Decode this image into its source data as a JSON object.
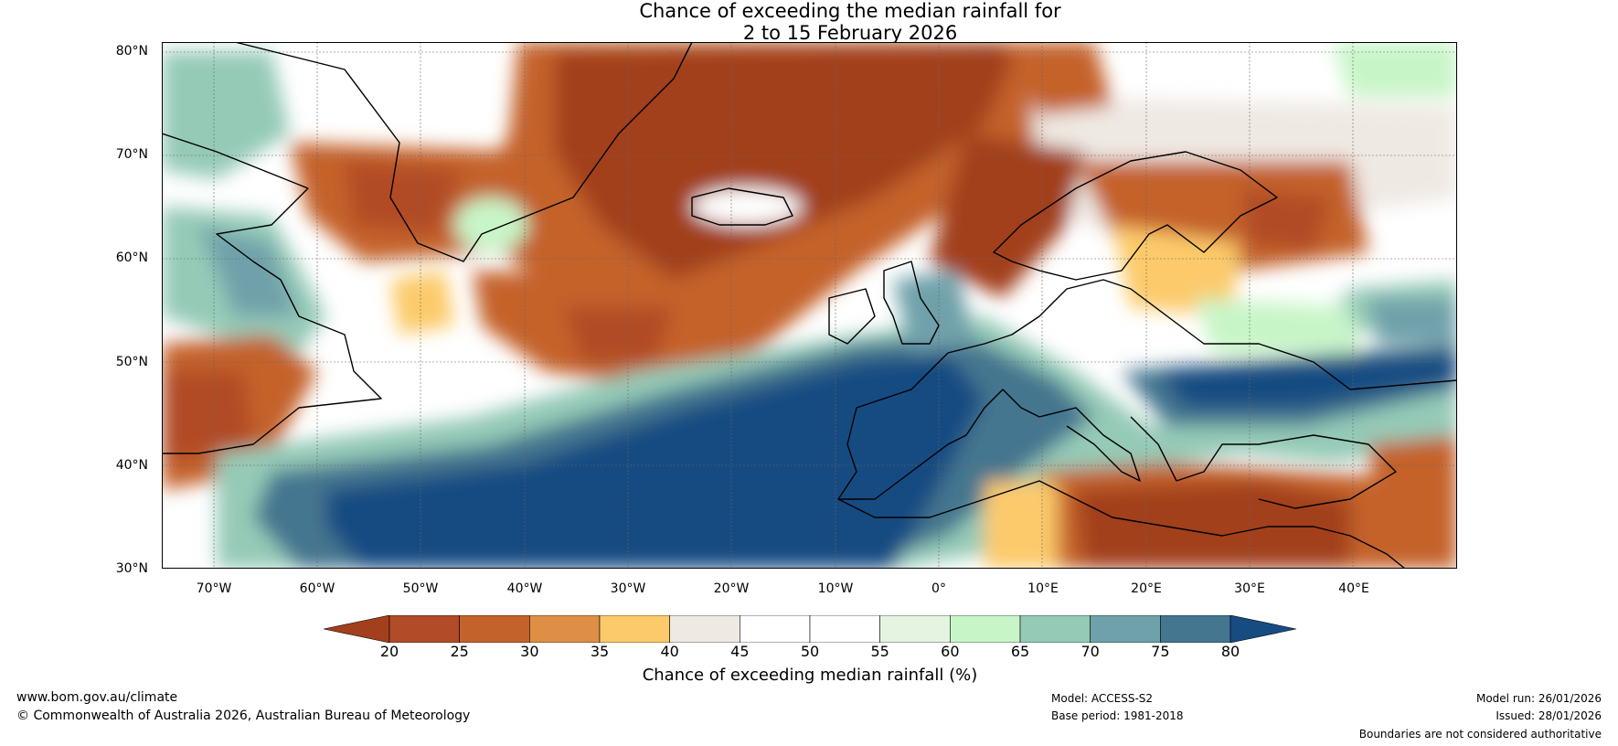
{
  "title": {
    "line1": "Chance of exceeding the median rainfall for",
    "line2": "2 to 15 February 2026"
  },
  "map": {
    "lat_labels": [
      "80°N",
      "70°N",
      "60°N",
      "50°N",
      "40°N",
      "30°N"
    ],
    "lon_labels": [
      "70°W",
      "60°W",
      "50°W",
      "40°W",
      "30°W",
      "20°W",
      "10°W",
      "0°",
      "10°E",
      "20°E",
      "30°E",
      "40°E"
    ],
    "extent": {
      "lon_min": -75,
      "lon_max": 50,
      "lat_min": 30,
      "lat_max": 81
    }
  },
  "legend": {
    "ticks": [
      "20",
      "25",
      "30",
      "35",
      "40",
      "45",
      "50",
      "55",
      "60",
      "65",
      "70",
      "75",
      "80"
    ],
    "colors": [
      "#a2401d",
      "#b14b28",
      "#c4622c",
      "#de8f45",
      "#fcca6a",
      "#efe9e3",
      "#ffffff",
      "#ffffff",
      "#e4f4e0",
      "#c8f5c8",
      "#95cab7",
      "#6fa1aa",
      "#44768f",
      "#164c82"
    ],
    "label": "Chance of exceeding median rainfall (%)"
  },
  "footer": {
    "website": "www.bom.gov.au/climate",
    "copyright": "© Commonwealth of Australia 2026, Australian Bureau of Meteorology",
    "model": "Model: ACCESS-S2",
    "base_period": "Base period: 1981-2018",
    "model_run": "Model run: 26/01/2026",
    "issued": "Issued: 28/01/2026",
    "disclaimer": "Boundaries are not considered authoritative"
  }
}
